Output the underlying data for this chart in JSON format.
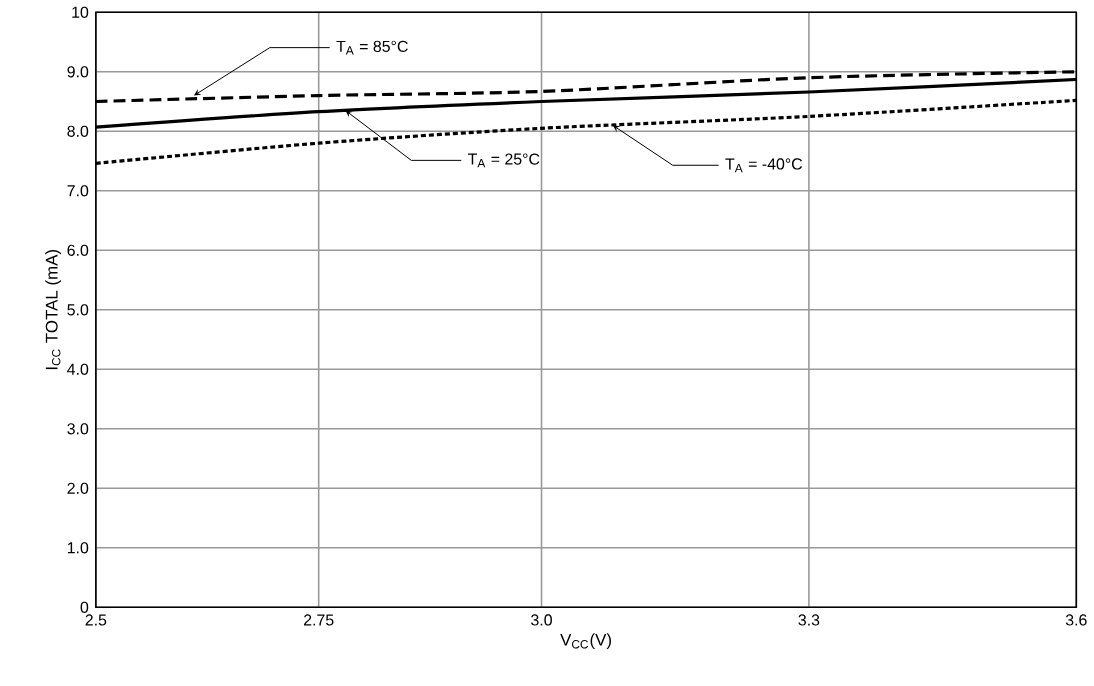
{
  "chart_data": {
    "type": "line",
    "xlabel": "V$_{CC}$(V)",
    "ylabel": "I$_{CC}$ TOTAL (mA)",
    "x": [
      2.5,
      2.75,
      3.0,
      3.3,
      3.6
    ],
    "series": [
      {
        "color": "#000000",
        "line_style": "dashed",
        "values": [
          8.5,
          8.6,
          8.67,
          8.9,
          9.0
        ]
      },
      {
        "color": "#000000",
        "line_style": "solid",
        "values": [
          8.07,
          8.33,
          8.5,
          8.66,
          8.87
        ]
      },
      {
        "color": "#000000",
        "line_style": "dotted",
        "values": [
          7.46,
          7.8,
          8.05,
          8.25,
          8.52
        ]
      }
    ],
    "xlim": [
      2.5,
      3.6
    ],
    "ylim": [
      0,
      10
    ],
    "xticks": [
      2.5,
      2.75,
      {
        "value": 3.0,
        "label": "3.0"
      },
      3.3,
      3.6
    ],
    "yticks": [
      0,
      {
        "value": 1,
        "label": "1.0"
      },
      {
        "value": 2,
        "label": "2.0"
      },
      {
        "value": 3,
        "label": "3.0"
      },
      {
        "value": 4,
        "label": "4.0"
      },
      {
        "value": 5,
        "label": "5.0"
      },
      {
        "value": 6,
        "label": "6.0"
      },
      {
        "value": 7,
        "label": "7.0"
      },
      {
        "value": 8,
        "label": "8.0"
      },
      {
        "value": 9,
        "label": "9.0"
      },
      10
    ],
    "grid": true,
    "marker": "none",
    "annotations": [
      {
        "text": "T$_{A}$ = 85°C",
        "x": 2.61,
        "y": 8.6
      },
      {
        "text": "T$_{A}$ = 25°C",
        "x": 2.78,
        "y": 8.35
      },
      {
        "text": "T$_{A}$ = -40°C",
        "x": 3.08,
        "y": 8.1
      }
    ]
  }
}
